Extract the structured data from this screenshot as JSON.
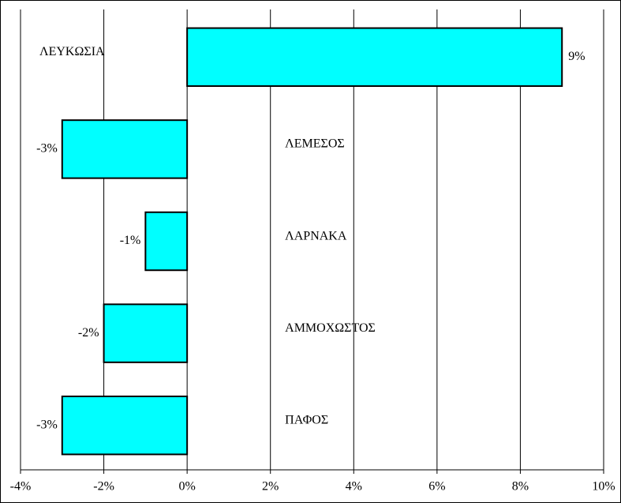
{
  "chart_data": {
    "type": "bar",
    "orientation": "horizontal",
    "categories": [
      "ΛΕΥΚΩΣΙΑ",
      "ΛΕΜΕΣΟΣ",
      "ΛΑΡΝΑΚΑ",
      "ΑΜΜΟΧΩΣΤΟΣ",
      "ΠΑΦΟΣ"
    ],
    "values": [
      9,
      -3,
      -1,
      -2,
      -3
    ],
    "value_labels": [
      "9%",
      "-3%",
      "-1%",
      "-2%",
      "-3%"
    ],
    "color": "#00ffff",
    "xlim": [
      -4,
      10
    ],
    "xticks": [
      {
        "value": -4,
        "label": "-4%"
      },
      {
        "value": -2,
        "label": "-2%"
      },
      {
        "value": 0,
        "label": "0%"
      },
      {
        "value": 2,
        "label": "2%"
      },
      {
        "value": 4,
        "label": "4%"
      },
      {
        "value": 6,
        "label": "6%"
      },
      {
        "value": 8,
        "label": "8%"
      },
      {
        "value": 10,
        "label": "10%"
      }
    ],
    "grid": true
  }
}
